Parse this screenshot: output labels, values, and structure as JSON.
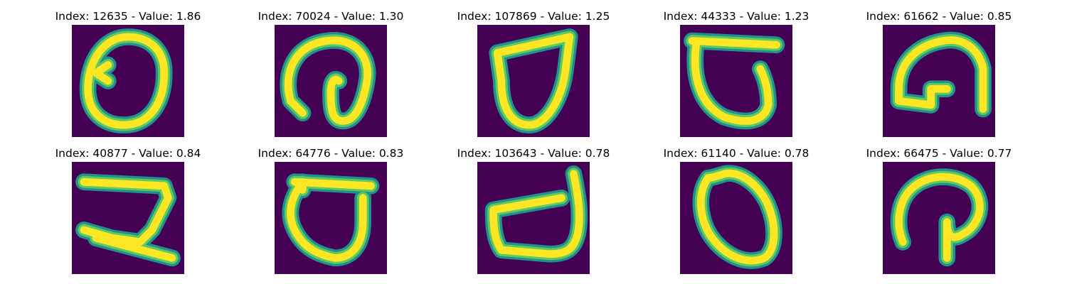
{
  "figure": {
    "colors": {
      "background": "#440154",
      "edge": "#21918c",
      "mid": "#5ec962",
      "core": "#fde725"
    },
    "panels": [
      {
        "index": "12635",
        "value": "1.86",
        "title": "Index: 12635 - Value: 1.86",
        "glyph": "digit-zero"
      },
      {
        "index": "70024",
        "value": "1.30",
        "title": "Index: 70024 - Value: 1.30",
        "glyph": "loop-shape"
      },
      {
        "index": "107869",
        "value": "1.25",
        "title": "Index: 107869 - Value: 1.25",
        "glyph": "drop-shape"
      },
      {
        "index": "44333",
        "value": "1.23",
        "title": "Index: 44333 - Value: 1.23",
        "glyph": "open-loop"
      },
      {
        "index": "61662",
        "value": "0.85",
        "title": "Index: 61662 - Value: 0.85",
        "glyph": "hook-shape"
      },
      {
        "index": "40877",
        "value": "0.84",
        "title": "Index: 40877 - Value: 0.84",
        "glyph": "digit-two"
      },
      {
        "index": "64776",
        "value": "0.83",
        "title": "Index: 64776 - Value: 0.83",
        "glyph": "open-loop"
      },
      {
        "index": "103643",
        "value": "0.78",
        "title": "Index: 103643 - Value: 0.78",
        "glyph": "cup-shape"
      },
      {
        "index": "61140",
        "value": "0.78",
        "title": "Index: 61140 - Value: 0.78",
        "glyph": "digit-zero"
      },
      {
        "index": "66475",
        "value": "0.77",
        "title": "Index: 66475 - Value: 0.77",
        "glyph": "loop-shape"
      }
    ]
  }
}
